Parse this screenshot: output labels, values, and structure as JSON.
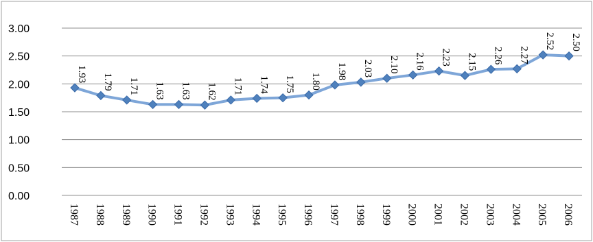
{
  "chart_data": {
    "type": "line",
    "x": [
      "1987",
      "1988",
      "1989",
      "1990",
      "1991",
      "1992",
      "1993",
      "1994",
      "1995",
      "1996",
      "1997",
      "1998",
      "1999",
      "2000",
      "2001",
      "2002",
      "2003",
      "2004",
      "2005",
      "2006"
    ],
    "series": [
      {
        "values": [
          1.93,
          1.79,
          1.71,
          1.63,
          1.63,
          1.62,
          1.71,
          1.74,
          1.75,
          1.8,
          1.98,
          2.03,
          2.1,
          2.16,
          2.23,
          2.15,
          2.26,
          2.27,
          2.52,
          2.5
        ],
        "labels": [
          "1.93",
          "1.79",
          "1.71",
          "1.63",
          "1.63",
          "1.62",
          "1.71",
          "1.74",
          "1.75",
          "1.80",
          "1.98",
          "2.03",
          "2.10",
          "2.16",
          "2.23",
          "2.15",
          "2.26",
          "2.27",
          "2.52",
          "2.50"
        ],
        "color": "#4f81bd",
        "line_color": "#7ea6d8",
        "marker": "diamond"
      }
    ],
    "y_ticks": [
      "0.00",
      "0.50",
      "1.00",
      "1.50",
      "2.00",
      "2.50",
      "3.00"
    ],
    "ylim": [
      0,
      3
    ],
    "grid": true,
    "legend": "none"
  }
}
